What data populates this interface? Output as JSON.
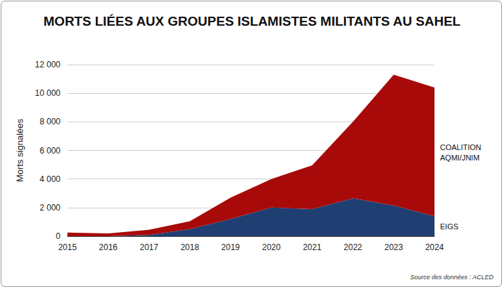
{
  "chart_data": {
    "type": "area",
    "title": "MORTS LIÉES AUX GROUPES ISLAMISTES MILITANTS AU SAHEL",
    "y_label": "Morts signalées",
    "source": "Source des données : ACLED",
    "categories": [
      "2015",
      "2016",
      "2017",
      "2018",
      "2019",
      "2020",
      "2021",
      "2022",
      "2023",
      "2024"
    ],
    "series": [
      {
        "name": "EIGS",
        "color": "#1f3f73",
        "values": [
          0,
          0,
          80,
          500,
          1200,
          2000,
          1900,
          2650,
          2150,
          1400
        ]
      },
      {
        "name": "COALITION\nAQMI/JNIM",
        "color": "#a80a0a",
        "values": [
          250,
          200,
          370,
          550,
          1500,
          2000,
          3050,
          5350,
          9150,
          9000
        ]
      }
    ],
    "stacked": true,
    "ylim": [
      0,
      12000
    ],
    "yticks": [
      0,
      {
        "value": 2000,
        "label": "2 000"
      },
      {
        "value": 4000,
        "label": "4 000"
      },
      {
        "value": 6000,
        "label": "6 000"
      },
      {
        "value": 8000,
        "label": "8 000"
      },
      {
        "value": 10000,
        "label": "10 000"
      },
      {
        "value": 12000,
        "label": "12 000"
      }
    ],
    "grid": true
  }
}
